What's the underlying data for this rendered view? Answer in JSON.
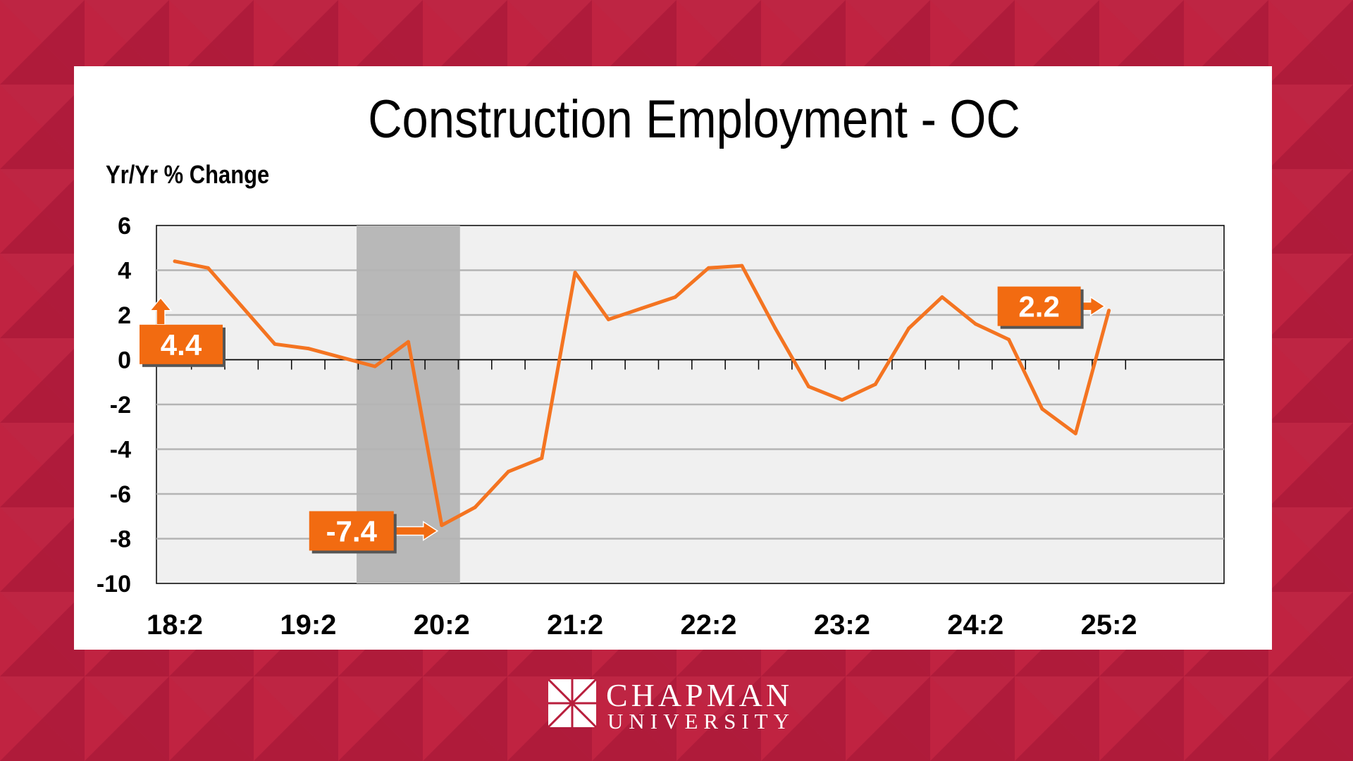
{
  "colors": {
    "background": "#b81e3c",
    "panel": "#ffffff",
    "plot_area": "#f0f0f0",
    "recession_band": "#b8b8b8",
    "line": "#f47421",
    "callout": "#f26b11"
  },
  "brand": {
    "name_line1": "CHAPMAN",
    "name_line2": "UNIVERSITY",
    "icon": "chapman-window-logo-icon"
  },
  "chart_data": {
    "type": "line",
    "title": "Construction Employment - OC",
    "ylabel": "Yr/Yr  % Change",
    "xlabel": "",
    "ylim": [
      -10,
      6
    ],
    "yticks": [
      6,
      4,
      2,
      0,
      -2,
      -4,
      -6,
      -8,
      -10
    ],
    "x_tick_labels": [
      "18:2",
      "19:2",
      "20:2",
      "21:2",
      "22:2",
      "23:2",
      "24:2",
      "25:2"
    ],
    "grid": true,
    "shaded_period": {
      "from": "19:4",
      "to": "20:2"
    },
    "x": [
      "18:2",
      "18:3",
      "18:4",
      "19:1",
      "19:2",
      "19:3",
      "19:4",
      "20:1",
      "20:2",
      "20:3",
      "20:4",
      "21:1",
      "21:2",
      "21:3",
      "21:4",
      "22:1",
      "22:2",
      "22:3",
      "22:4",
      "23:1",
      "23:2",
      "23:3",
      "23:4",
      "24:1",
      "24:2",
      "24:3",
      "24:4",
      "25:1",
      "25:2"
    ],
    "series": [
      {
        "values": [
          4.4,
          4.1,
          2.4,
          0.7,
          0.5,
          0.1,
          -0.3,
          0.8,
          -7.4,
          -6.6,
          -5.0,
          -4.4,
          3.9,
          1.8,
          2.3,
          2.8,
          4.1,
          4.2,
          1.4,
          -1.2,
          -1.8,
          -1.1,
          1.4,
          2.8,
          1.6,
          0.9,
          -2.2,
          -3.3,
          2.2
        ]
      }
    ],
    "annotations": [
      {
        "label": "4.4",
        "x": "18:2",
        "y": 4.4
      },
      {
        "label": "-7.4",
        "x": "20:2",
        "y": -7.4
      },
      {
        "label": "2.2",
        "x": "25:2",
        "y": 2.2
      }
    ]
  }
}
